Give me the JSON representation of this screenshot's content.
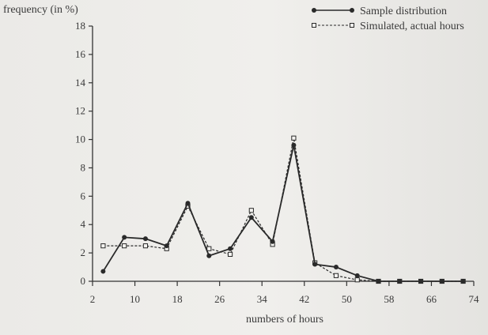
{
  "chart_data": {
    "type": "line",
    "ylabel": "frequency (in %)",
    "xlabel": "numbers of hours",
    "xlim": [
      2,
      74
    ],
    "ylim": [
      0,
      18
    ],
    "xticks": [
      2,
      10,
      18,
      26,
      34,
      42,
      50,
      58,
      66,
      74
    ],
    "yticks": [
      0,
      2,
      4,
      6,
      8,
      10,
      12,
      14,
      16,
      18
    ],
    "legend_position": "top-right",
    "grid": false,
    "series": [
      {
        "name": "Sample distribution",
        "style": "solid-filled-circle",
        "color": "#2a2a2a",
        "x": [
          4,
          8,
          12,
          16,
          20,
          24,
          28,
          32,
          36,
          40,
          44,
          48,
          52,
          56,
          60,
          64,
          68,
          72
        ],
        "y": [
          0.7,
          3.1,
          3.0,
          2.5,
          5.5,
          1.8,
          2.3,
          4.5,
          2.8,
          9.6,
          1.2,
          1.0,
          0.4,
          0.0,
          0.0,
          0.0,
          0.0,
          0.0
        ]
      },
      {
        "name": "Simulated, actual hours",
        "style": "dashed-open-square",
        "color": "#2a2a2a",
        "x": [
          4,
          8,
          12,
          16,
          20,
          24,
          28,
          32,
          36,
          40,
          44,
          48,
          52,
          56,
          60,
          64,
          68,
          72
        ],
        "y": [
          2.5,
          2.5,
          2.5,
          2.3,
          5.3,
          2.3,
          1.9,
          5.0,
          2.6,
          10.1,
          1.3,
          0.4,
          0.1,
          0.0,
          0.0,
          0.0,
          0.0,
          0.0
        ]
      }
    ]
  }
}
